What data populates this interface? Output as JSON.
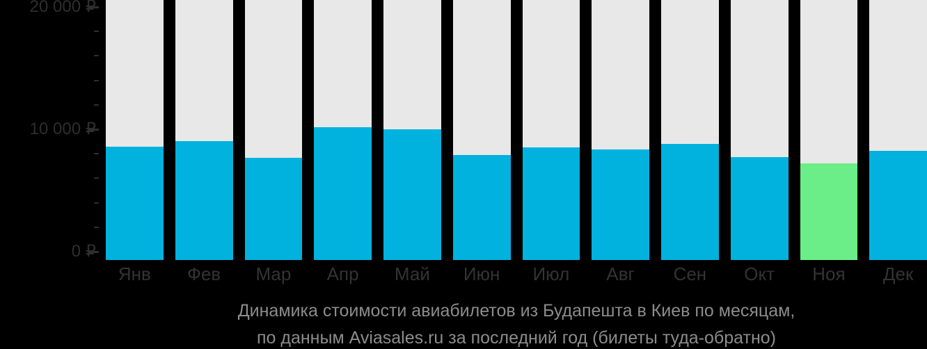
{
  "chart_data": {
    "type": "bar",
    "categories": [
      "Янв",
      "Фев",
      "Мар",
      "Апр",
      "Май",
      "Июн",
      "Июл",
      "Авг",
      "Сен",
      "Окт",
      "Ноя",
      "Дек"
    ],
    "values": [
      8700,
      9150,
      7850,
      10200,
      10050,
      8100,
      8650,
      8500,
      8950,
      7900,
      7450,
      8400
    ],
    "ylim": [
      0,
      20000
    ],
    "currency": "₽",
    "y_major_ticks": [
      {
        "value": 20000,
        "label": "20 000 ₽"
      },
      {
        "value": 10000,
        "label": "10 000 ₽"
      },
      {
        "value": 0,
        "label": "0 ₽"
      }
    ],
    "y_minor_tick_step": 2000,
    "grid": false,
    "legend": false,
    "highlight_index": 10,
    "highlight_month": "Ноя"
  },
  "caption": {
    "line1": "Динамика стоимости авиабилетов из Будапешта в Киев по месяцам,",
    "line2": "по данным Aviasales.ru за последний год (билеты туда-обратно)"
  },
  "colors": {
    "background": "#000000",
    "bar": "#00b2dd",
    "bar_highlight": "#6bee87",
    "track": "#e8e8e8",
    "axis_text": "#2e2e2e",
    "tick": "#2e2e2e",
    "month_text": "#333333",
    "caption_text": "#8c8c8c"
  }
}
